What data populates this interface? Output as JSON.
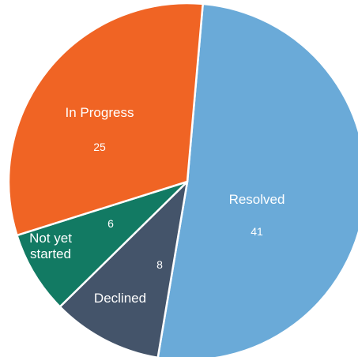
{
  "chart_data": {
    "type": "pie",
    "categories": [
      "Resolved",
      "Declined",
      "Not yet started",
      "In Progress"
    ],
    "values": [
      41,
      8,
      6,
      25
    ],
    "colors": [
      "#6aaad8",
      "#44546a",
      "#127a63",
      "#f06424"
    ]
  }
}
